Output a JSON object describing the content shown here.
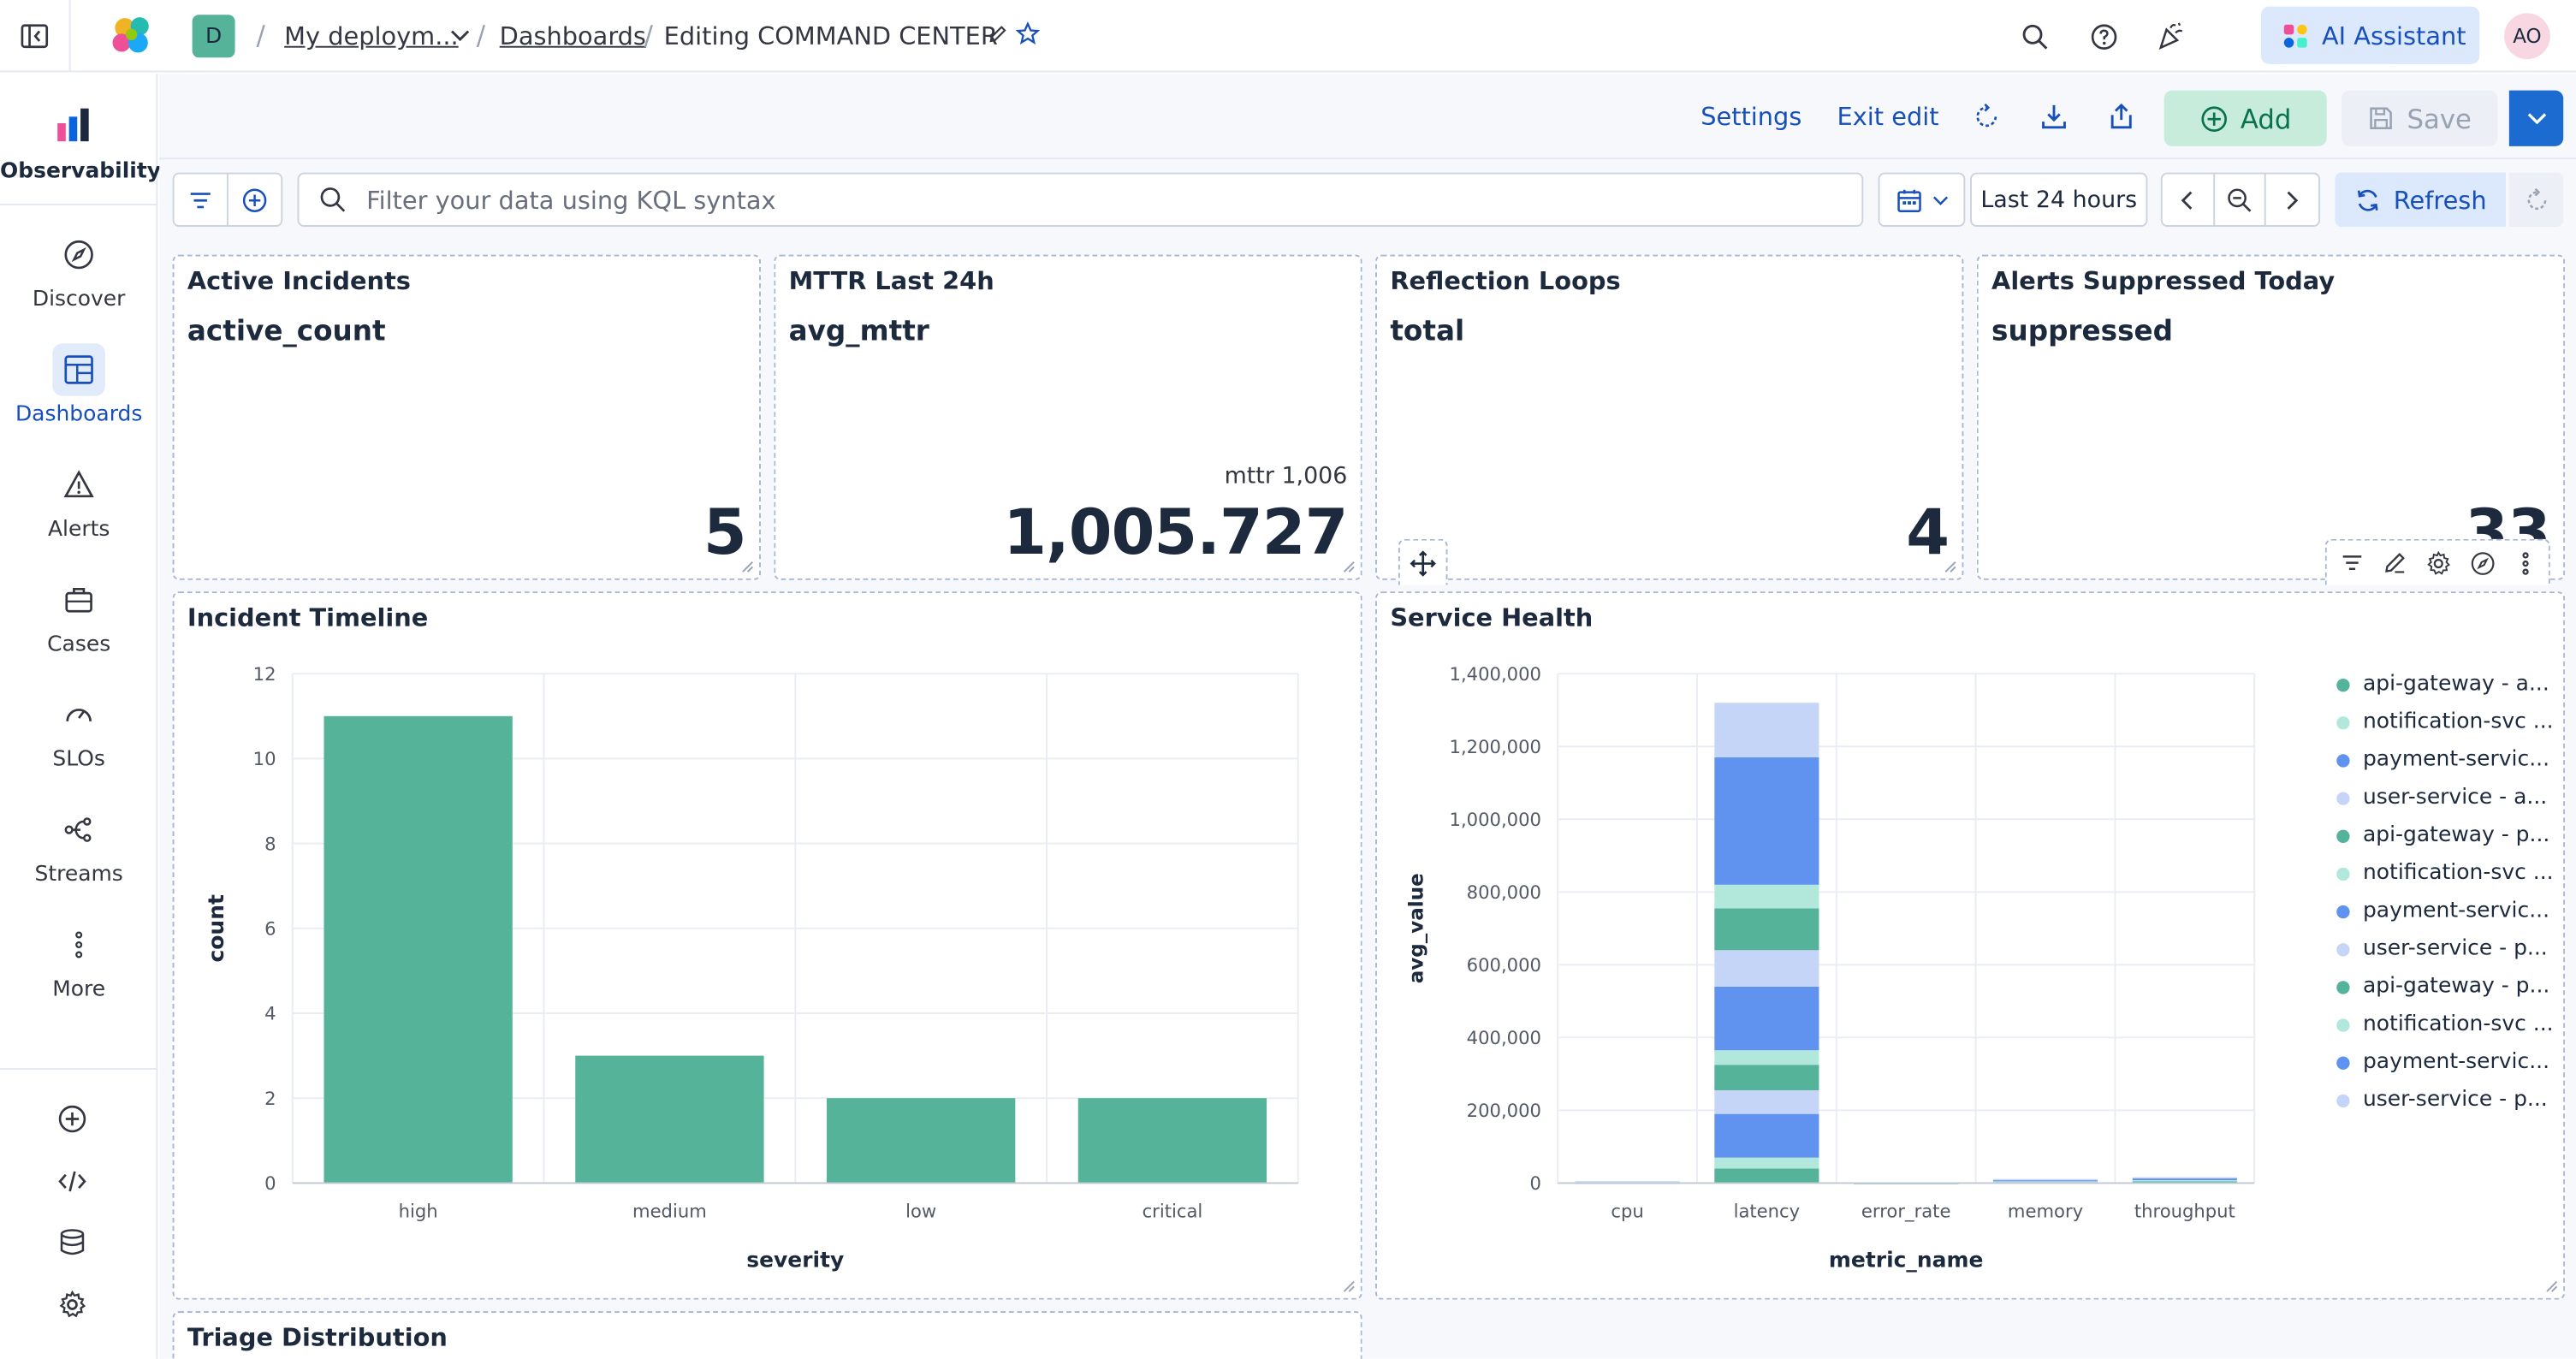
{
  "header": {
    "space_initial": "D",
    "breadcrumbs": [
      "My deploym...",
      "Dashboards",
      "Editing COMMAND CENTER"
    ],
    "ai_assistant_label": "AI Assistant",
    "user_initials": "AO"
  },
  "sidenav": {
    "solution_label": "Observability",
    "items": [
      {
        "label": "Discover",
        "icon": "compass-icon"
      },
      {
        "label": "Dashboards",
        "icon": "dashboard-icon",
        "active": true
      },
      {
        "label": "Alerts",
        "icon": "warning-icon"
      },
      {
        "label": "Cases",
        "icon": "briefcase-icon"
      },
      {
        "label": "SLOs",
        "icon": "gauge-icon"
      },
      {
        "label": "Streams",
        "icon": "streams-icon"
      },
      {
        "label": "More",
        "icon": "more-vertical-icon"
      }
    ],
    "footer_icons": [
      "plus-circle-icon",
      "code-icon",
      "database-icon",
      "gear-icon"
    ]
  },
  "toolbar": {
    "settings_label": "Settings",
    "exit_edit_label": "Exit edit",
    "add_label": "Add",
    "save_label": "Save"
  },
  "query": {
    "placeholder": "Filter your data using KQL syntax",
    "time_range": "Last 24 hours",
    "refresh_label": "Refresh"
  },
  "metrics": [
    {
      "title": "Active Incidents",
      "field": "active_count",
      "value": "5"
    },
    {
      "title": "MTTR Last 24h",
      "field": "avg_mttr",
      "value": "1,005.727",
      "caption": "mttr 1,006"
    },
    {
      "title": "Reflection Loops",
      "field": "total",
      "value": "4"
    },
    {
      "title": "Alerts Suppressed Today",
      "field": "suppressed",
      "value": "33"
    }
  ],
  "panels": {
    "incident_timeline_title": "Incident Timeline",
    "service_health_title": "Service Health",
    "triage_title": "Triage Distribution"
  },
  "colors": {
    "teal": "#54b399",
    "blue": "#6092f0",
    "light_blue": "#c5d5f7",
    "light_teal": "#b2e8dc",
    "accent": "#1750ba"
  },
  "chart_data": [
    {
      "type": "bar",
      "title": "Incident Timeline",
      "xlabel": "severity",
      "ylabel": "count",
      "categories": [
        "high",
        "medium",
        "low",
        "critical"
      ],
      "values": [
        11,
        3,
        2,
        2
      ],
      "ylim": [
        0,
        12
      ],
      "yticks": [
        0,
        2,
        4,
        6,
        8,
        10,
        12
      ],
      "grid": true
    },
    {
      "type": "bar",
      "stacked": true,
      "title": "Service Health",
      "xlabel": "metric_name",
      "ylabel": "avg_value",
      "categories": [
        "cpu",
        "latency",
        "error_rate",
        "memory",
        "throughput"
      ],
      "ylim": [
        0,
        1400000
      ],
      "yticks": [
        0,
        200000,
        400000,
        600000,
        800000,
        1000000,
        1200000,
        1400000
      ],
      "ytick_labels": [
        "0",
        "200,000",
        "400,000",
        "600,000",
        "800,000",
        "1,000,000",
        "1,200,000",
        "1,400,000"
      ],
      "legend_position": "right",
      "series": [
        {
          "name": "api-gateway - a...",
          "color": "#54b399",
          "values": [
            1500,
            40000,
            300,
            3000,
            5000
          ]
        },
        {
          "name": "notification-svc ...",
          "color": "#b2e8dc",
          "values": [
            1000,
            30000,
            200,
            2500,
            3000
          ]
        },
        {
          "name": "payment-servic...",
          "color": "#6092f0",
          "values": [
            1500,
            120000,
            300,
            3000,
            6000
          ]
        },
        {
          "name": "user-service - a...",
          "color": "#c5d5f7",
          "values": [
            1000,
            65000,
            200,
            2500,
            2000
          ]
        },
        {
          "name": "api-gateway - p...",
          "color": "#54b399",
          "values": [
            0,
            70000,
            0,
            0,
            0
          ]
        },
        {
          "name": "notification-svc ...",
          "color": "#b2e8dc",
          "values": [
            0,
            40000,
            0,
            0,
            0
          ]
        },
        {
          "name": "payment-servic...",
          "color": "#6092f0",
          "values": [
            0,
            175000,
            0,
            0,
            0
          ]
        },
        {
          "name": "user-service - p...",
          "color": "#c5d5f7",
          "values": [
            0,
            100000,
            0,
            0,
            0
          ]
        },
        {
          "name": "api-gateway - p...",
          "color": "#54b399",
          "values": [
            0,
            115000,
            0,
            0,
            0
          ]
        },
        {
          "name": "notification-svc ...",
          "color": "#b2e8dc",
          "values": [
            0,
            65000,
            0,
            0,
            0
          ]
        },
        {
          "name": "payment-servic...",
          "color": "#6092f0",
          "values": [
            0,
            350000,
            0,
            0,
            0
          ]
        },
        {
          "name": "user-service - p...",
          "color": "#c5d5f7",
          "values": [
            0,
            150000,
            0,
            0,
            0
          ]
        }
      ]
    }
  ]
}
